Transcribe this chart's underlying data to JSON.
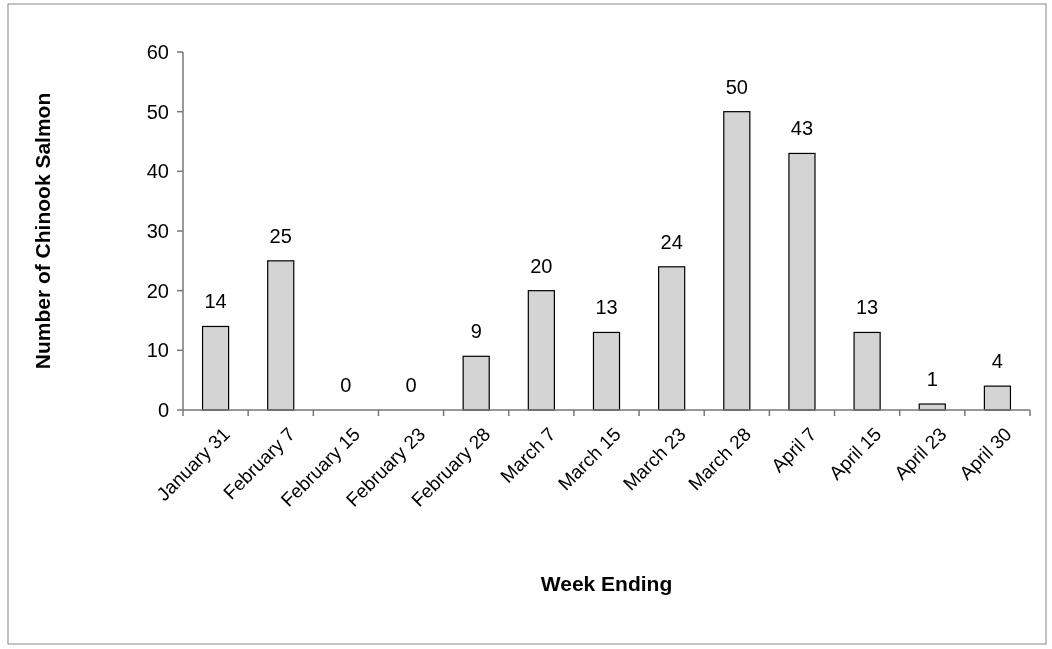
{
  "chart_data": {
    "type": "bar",
    "xlabel": "Week Ending",
    "ylabel": "Number of Chinook Salmon",
    "categories": [
      "January 31",
      "February 7",
      "February 15",
      "February 23",
      "February 28",
      "March 7",
      "March 15",
      "March 23",
      "March 28",
      "April 7",
      "April 15",
      "April 23",
      "April 30"
    ],
    "values": [
      14,
      25,
      0,
      0,
      9,
      20,
      13,
      24,
      50,
      43,
      13,
      1,
      4
    ],
    "color": "#d4d4d4",
    "ylim": [
      0,
      60
    ],
    "yticks": [
      0,
      10,
      20,
      30,
      40,
      50,
      60
    ],
    "grid": false,
    "data_labels": true
  }
}
